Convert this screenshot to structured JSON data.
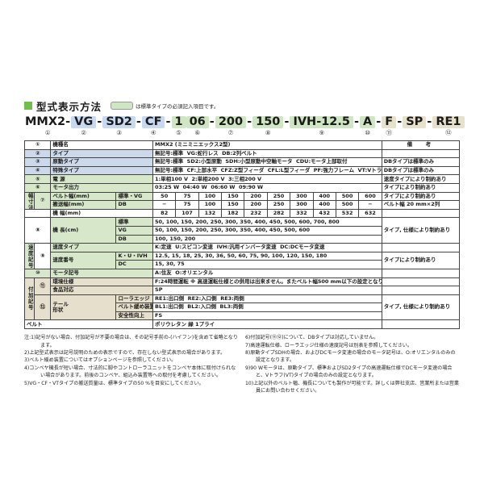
{
  "header": {
    "section_title": "型式表示方法",
    "legend_note": "は標準タイプの必須記入項目です。"
  },
  "colors": {
    "required_green": "#cfe6c2",
    "type_blue": "#c6d9f0",
    "additional_beige": "#e7e0ca"
  },
  "model": {
    "s1": {
      "text": "MMX2-",
      "num": "①"
    },
    "s2": {
      "text": "VG",
      "num": "②"
    },
    "s3": {
      "text": "SD2",
      "num": "③"
    },
    "s4": {
      "text": "CF",
      "num": "④"
    },
    "s5": {
      "text": "1",
      "num": "⑤"
    },
    "s6": {
      "text": "06",
      "num": "⑥"
    },
    "s7": {
      "text": "200",
      "num": "⑦"
    },
    "s8": {
      "text": "150",
      "num": "⑧"
    },
    "s9": {
      "text": "IVH-12.5",
      "num": "⑨"
    },
    "s10": {
      "text": "A",
      "num": "⑩"
    },
    "s11": {
      "text": "F",
      "num": "⑪"
    },
    "s12": {
      "text": "SP",
      "num": ""
    },
    "s13": {
      "text": "RE1",
      "num": "⑫"
    },
    "dash": "-"
  },
  "t": {
    "r1": {
      "num": "①",
      "label": "機種名",
      "value": "MMX2 (ミニミニエックス2型)",
      "remark": "備  考"
    },
    "r2": {
      "num": "②",
      "label": "タイプ",
      "value": "無記号:標準  VG:蛇行レス  DB:2列ベルト",
      "remark": ""
    },
    "r3": {
      "num": "③",
      "label": "原動タイプ",
      "value": "無記号:標準  SD2:小型原動  SDH:小型原動中空軸モータ  CDU:モータ上部取付",
      "remark": "DBタイプは標準のみ"
    },
    "r4": {
      "num": "④",
      "label": "特殊タイプ",
      "value": "無記号:標準  CF:上部水平  CFZ:Z型フィーダ  CFL:L型フィーダ  PF:強力フレーム  VT:Vトラフ",
      "remark": "DBタイプは標準のみ"
    },
    "r5": {
      "num": "⑤",
      "label": "電 源",
      "value": "1:単相100 V  2:単相200 V  3:三相200 V",
      "remark": "速度タイプにより制約あり"
    },
    "r6": {
      "num": "⑥",
      "label": "モータ出力",
      "value": "03:25 W  04:40 W  06:60 W  09:90 W",
      "remark": "タイプにより制約あり"
    },
    "w": {
      "group": "幅寸法",
      "num": "⑦",
      "belt": {
        "label": "ベルト幅(mm)",
        "sub": "標準・VG",
        "values": [
          "50",
          "75",
          "100",
          "150",
          "200",
          "250",
          "300",
          "400",
          "500",
          "600"
        ],
        "remark": "タイプにより制約あり"
      },
      "conv": {
        "label": "搬送幅(mm)",
        "sub": "DB",
        "values": [
          "−",
          "75",
          "100",
          "150",
          "200",
          "250",
          "300",
          "400",
          "500",
          "−"
        ],
        "remark": "ベルト幅 20 mm×2列"
      },
      "frame": {
        "label": "機 幅(mm)",
        "values": [
          "82",
          "107",
          "132",
          "182",
          "232",
          "282",
          "332",
          "432",
          "532",
          "632"
        ],
        "remark": ""
      }
    },
    "len": {
      "num": "⑧",
      "label": "機 長(cm)",
      "std": {
        "sub": "標準",
        "value": "50, 100, 150, 200, 250, 300, 350, 400, 450, 500, 600, 700, 800"
      },
      "vg": {
        "sub": "VG",
        "value": "50, 100, 150, 200, 250, 300, 350, 400, 450, 500, 600"
      },
      "db": {
        "sub": "DB",
        "value": "100, 150, 200"
      },
      "remark": "タイプ, 仕様により制約あり"
    },
    "spd": {
      "group": "速度記号",
      "num": "⑨",
      "type": {
        "label": "速度タイプ",
        "value": "K:定速  U:スピコン変速  IVH:汎用インバータ変速  DC:DCモータ変速",
        "remark": ""
      },
      "number_label": "速度番号",
      "kuivh": {
        "sub": "K・U・IVH",
        "value": "12.5, 15, 18, 25, 30, 36, 50, 60, 75, 90, 100, 120, 150, 180"
      },
      "dc": {
        "sub": "DC",
        "value": "15, 30, 75"
      },
      "number_remark": "タイプにより制約あり"
    },
    "motor": {
      "num": "⑩",
      "label": "モータ記号",
      "value": "A:住友  O:オリエンタル",
      "remark": ""
    },
    "add": {
      "group": "付加記号",
      "env": {
        "num": "⑪",
        "label": "環境仕様",
        "value": "F:24時間運転 ※ 高速運転仕様との併用は出来ません。またベルト幅500 mm以下の設定となります。",
        "remark": ""
      },
      "food": {
        "label": "食品対応",
        "value": "SP",
        "remark": ""
      },
      "tail": {
        "num": "⑫",
        "label": "テール\n形状",
        "roller": {
          "sub": "ローラエッジ",
          "value": "RE1:出口側  RE2:入口側  RE3:両側"
        },
        "loosen": {
          "sub": "ベルト緩め装置",
          "value": "BL1:出口側  BL2:入口側  BL3:両側"
        },
        "safety": {
          "sub": "安全性向上",
          "value": "FS"
        },
        "remark": "タイプ, 仕様により制約あり"
      }
    },
    "belt": {
      "label": "ベルト",
      "value": "ポリウレタン 緑 1プライ",
      "remark": ""
    }
  },
  "notes": {
    "left": [
      "注:1)記号がない場合、付加記号が不要の場合は、その記号手前の-(ハイフン)を含めて省略となります。",
      "2)上記型式表示は記号説明のための表示ですので、存在しない型式表示の場合があります。",
      "3)ベルト緩め装置についてはオプションページを参照してください。",
      "4)コンベヤ機長が短い場合、寸法的に脚やコントローラユニットをコンベヤ本体に取付けられない場合があります。前後のコンベヤ、組込み装置等への取付を考慮してください。",
      "5)VG・CF・VTタイプの搬送質量は、標準タイプの50 %を目安にしてください。"
    ],
    "right": [
      "6)付加記号(⑪⑫)について、DBタイプは対応していません。",
      "7)高速運転仕様、ローラエッジ仕様の速度記号は別表を参照してください。",
      "8)原動タイプSDHの場合、およびDCモータ変速の場合のモータ記号は、O:オリエンタルのみの設定となります。",
      "9)90 Wモータは、原動タイプ、標準およびSD2タイプの高速運転仕様でDCモータ変速の場合と、Vトラフ(VT)タイプの場合のみの設定となります。",
      "10)上記以外のベルト幅、機長についても製作が可能です。詳しくは弊社支店、営業所または営業員にお問い合わせください。"
    ]
  }
}
